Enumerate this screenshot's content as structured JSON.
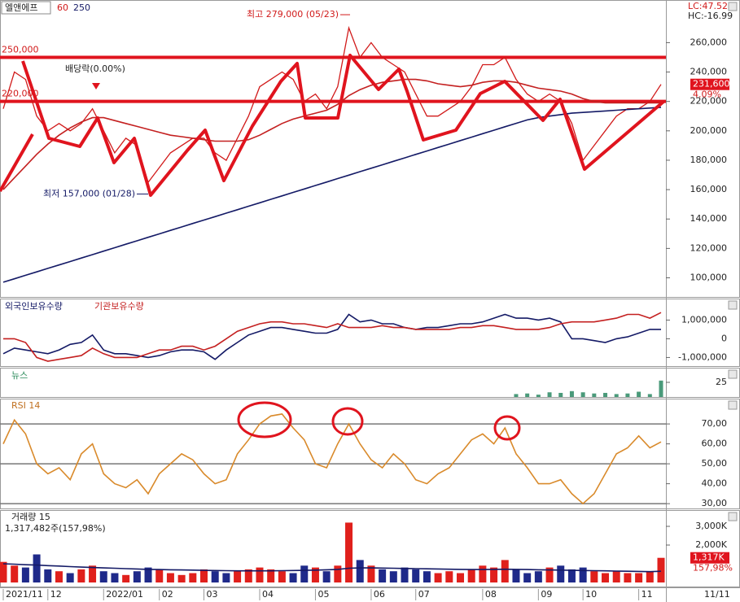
{
  "chart_data": [
    {
      "type": "line",
      "title": "엘앤에프",
      "ylim": [
        87000,
        289000
      ],
      "yticks": [
        {
          "value": 100000,
          "label": "100,000"
        },
        {
          "value": 120000,
          "label": "120,000"
        },
        {
          "value": 140000,
          "label": "140,000"
        },
        {
          "value": 160000,
          "label": "160,000"
        },
        {
          "value": 180000,
          "label": "180,000"
        },
        {
          "value": 200000,
          "label": "200,000"
        },
        {
          "value": 220000,
          "label": "220,000"
        },
        {
          "value": 240000,
          "label": "240,000"
        },
        {
          "value": 260000,
          "label": "260,000"
        }
      ],
      "levels": [
        {
          "value": 250000,
          "label": "250,000"
        },
        {
          "value": 220000,
          "label": "220,000"
        }
      ],
      "high": {
        "value": 279000,
        "label": "최고 279,000 (05/23)"
      },
      "low": {
        "value": 157000,
        "label": "최저 157,000 (01/28)"
      },
      "event_label": "배당락(0.00%)",
      "last": {
        "value": 231600,
        "label": "231,600"
      },
      "change_label": "4.09%",
      "lc_label": "LC:47.52",
      "hc_label": "HC:-16.99",
      "series": [
        {
          "color": "#d11a1a",
          "values": [
            215000,
            240000,
            235000,
            210000,
            200000,
            205000,
            200000,
            205000,
            215000,
            200000,
            185000,
            195000,
            190000,
            165000,
            175000,
            185000,
            190000,
            195000,
            195000,
            185000,
            180000,
            195000,
            210000,
            230000,
            235000,
            240000,
            235000,
            220000,
            225000,
            215000,
            230000,
            270000,
            250000,
            260000,
            250000,
            245000,
            240000,
            225000,
            210000,
            210000,
            215000,
            220000,
            230000,
            245000,
            245000,
            250000,
            235000,
            225000,
            220000,
            225000,
            220000,
            205000,
            180000,
            190000,
            200000,
            210000,
            215000,
            215000,
            220000,
            231600
          ]
        },
        {
          "name": "60",
          "color": "#c42020",
          "values": [
            160000,
            168000,
            176000,
            184000,
            191000,
            197000,
            202000,
            206000,
            209000,
            209000,
            207000,
            205000,
            203000,
            201000,
            199000,
            197000,
            196000,
            195000,
            194000,
            193000,
            193000,
            193000,
            194000,
            197000,
            201000,
            205000,
            208000,
            210000,
            212000,
            214000,
            218000,
            224000,
            228000,
            231000,
            233000,
            234000,
            235000,
            235000,
            234000,
            232000,
            231000,
            230000,
            231000,
            233000,
            234000,
            234000,
            233000,
            231000,
            229000,
            228000,
            227000,
            225000,
            222000,
            220000,
            219000,
            219000,
            219000,
            219000,
            219000,
            219000
          ]
        },
        {
          "name": "250",
          "color": "#141a66",
          "values": [
            97000,
            99350,
            101700,
            104050,
            106400,
            108750,
            111100,
            113450,
            115800,
            118150,
            120500,
            122850,
            125200,
            127550,
            129900,
            132250,
            134600,
            136950,
            139300,
            141650,
            144000,
            146350,
            148700,
            151050,
            153400,
            155750,
            158100,
            160450,
            162800,
            165150,
            167500,
            169850,
            172200,
            174550,
            176900,
            179250,
            181600,
            183950,
            186300,
            188650,
            191000,
            193350,
            195700,
            198050,
            200400,
            202750,
            205100,
            207450,
            209000,
            210000,
            211000,
            212000,
            212500,
            213000,
            213500,
            214000,
            214500,
            215000,
            215500,
            216000
          ]
        }
      ]
    },
    {
      "type": "line",
      "ylim": [
        -1460000,
        2150000
      ],
      "yticks": [
        {
          "value": 1000000,
          "label": "1,000,000"
        },
        0,
        {
          "value": -1000000,
          "label": "-1,000,000"
        }
      ],
      "series": [
        {
          "name": "외국인보유수량",
          "color": "#141a66",
          "values": [
            -800000,
            -500000,
            -600000,
            -700000,
            -800000,
            -600000,
            -300000,
            -200000,
            200000,
            -600000,
            -800000,
            -800000,
            -900000,
            -1000000,
            -900000,
            -700000,
            -600000,
            -600000,
            -700000,
            -1100000,
            -600000,
            -200000,
            200000,
            400000,
            600000,
            600000,
            500000,
            400000,
            300000,
            300000,
            500000,
            1300000,
            900000,
            1000000,
            800000,
            800000,
            600000,
            500000,
            600000,
            600000,
            700000,
            800000,
            800000,
            900000,
            1100000,
            1300000,
            1100000,
            1100000,
            1000000,
            1100000,
            900000,
            0,
            0,
            -100000,
            -200000,
            0,
            100000,
            300000,
            500000,
            500000
          ]
        },
        {
          "name": "기관보유수량",
          "color": "#c42020",
          "values": [
            0,
            0,
            -200000,
            -1000000,
            -1200000,
            -1100000,
            -1000000,
            -900000,
            -500000,
            -800000,
            -1000000,
            -1000000,
            -1000000,
            -800000,
            -600000,
            -600000,
            -400000,
            -400000,
            -600000,
            -400000,
            0,
            400000,
            600000,
            800000,
            900000,
            900000,
            800000,
            800000,
            700000,
            600000,
            800000,
            600000,
            600000,
            600000,
            700000,
            600000,
            600000,
            500000,
            500000,
            500000,
            500000,
            600000,
            600000,
            700000,
            700000,
            600000,
            500000,
            500000,
            500000,
            600000,
            800000,
            900000,
            900000,
            900000,
            1000000,
            1100000,
            1300000,
            1300000,
            1100000,
            1400000
          ]
        }
      ]
    },
    {
      "type": "bar",
      "title": "뉴스",
      "ylim": [
        0,
        50
      ],
      "yticks": [
        25
      ],
      "series": [
        {
          "color": "#4a9a7a",
          "values": [
            0,
            0,
            0,
            0,
            0,
            0,
            0,
            0,
            0,
            0,
            0,
            0,
            0,
            0,
            0,
            0,
            0,
            0,
            0,
            0,
            0,
            0,
            0,
            0,
            0,
            0,
            0,
            0,
            0,
            0,
            0,
            0,
            0,
            0,
            0,
            0,
            0,
            0,
            0,
            0,
            0,
            0,
            0,
            0,
            0,
            0,
            5,
            6,
            4,
            8,
            7,
            10,
            8,
            6,
            7,
            5,
            6,
            9,
            5,
            28
          ]
        }
      ]
    },
    {
      "type": "line",
      "title": "RSI 14",
      "ylim": [
        27.6,
        82.7
      ],
      "yticks": [
        {
          "value": 70,
          "label": "70,00"
        },
        {
          "value": 60,
          "label": "60,00"
        },
        {
          "value": 50,
          "label": "50,00"
        },
        {
          "value": 40,
          "label": "40,00"
        },
        {
          "value": 30,
          "label": "30,00"
        }
      ],
      "levels": [
        70,
        50,
        30
      ],
      "series": [
        {
          "color": "#d98a2b",
          "values": [
            60,
            72,
            65,
            50,
            45,
            48,
            42,
            55,
            60,
            45,
            40,
            38,
            42,
            35,
            45,
            50,
            55,
            52,
            45,
            40,
            42,
            55,
            62,
            70,
            74,
            75,
            68,
            62,
            50,
            48,
            60,
            70,
            60,
            52,
            48,
            55,
            50,
            42,
            40,
            45,
            48,
            55,
            62,
            65,
            60,
            68,
            55,
            48,
            40,
            40,
            42,
            35,
            30,
            35,
            45,
            55,
            58,
            64,
            58,
            61
          ]
        }
      ]
    },
    {
      "type": "bar",
      "title": "거래량 15",
      "subtitle": "1,317,482주(157,98%)",
      "ylim": [
        0,
        3870000
      ],
      "yticks": [
        {
          "value": 3000000,
          "label": "3,000K"
        },
        {
          "value": 2000000,
          "label": "2,000K"
        }
      ],
      "last": {
        "value": 1317482,
        "label": "1,317K"
      },
      "change_label": "157,98%",
      "up_color": "#e0201c",
      "down_color": "#1f2a8a",
      "categories": [
        "2021/11",
        null,
        null,
        null,
        "12",
        null,
        null,
        null,
        null,
        "2022/01",
        null,
        null,
        null,
        null,
        "02",
        null,
        null,
        null,
        "03",
        null,
        null,
        null,
        null,
        "04",
        null,
        null,
        null,
        null,
        "05",
        null,
        null,
        null,
        null,
        "06",
        null,
        null,
        null,
        "07",
        null,
        null,
        null,
        null,
        null,
        "08",
        null,
        null,
        null,
        null,
        "09",
        null,
        null,
        null,
        "10",
        null,
        null,
        null,
        null,
        "11",
        null,
        null
      ],
      "x_cursor_label": "11/11",
      "series": [
        {
          "values": [
            1100000,
            900000,
            800000,
            1500000,
            700000,
            600000,
            500000,
            700000,
            900000,
            600000,
            500000,
            400000,
            600000,
            800000,
            700000,
            500000,
            400000,
            500000,
            700000,
            600000,
            500000,
            600000,
            700000,
            800000,
            700000,
            600000,
            500000,
            900000,
            800000,
            600000,
            900000,
            3200000,
            1200000,
            900000,
            700000,
            600000,
            800000,
            700000,
            600000,
            500000,
            600000,
            500000,
            700000,
            900000,
            800000,
            1200000,
            700000,
            500000,
            600000,
            800000,
            900000,
            700000,
            800000,
            600000,
            500000,
            600000,
            500000,
            500000,
            600000,
            1317482
          ]
        },
        {
          "type": "line",
          "color": "#141a66",
          "values": [
            1000000,
            980000,
            950000,
            930000,
            900000,
            880000,
            850000,
            820000,
            800000,
            780000,
            760000,
            740000,
            720000,
            700000,
            690000,
            680000,
            670000,
            660000,
            650000,
            640000,
            630000,
            620000,
            620000,
            620000,
            620000,
            630000,
            640000,
            650000,
            660000,
            680000,
            700000,
            760000,
            780000,
            780000,
            770000,
            760000,
            750000,
            740000,
            730000,
            720000,
            710000,
            700000,
            690000,
            690000,
            700000,
            710000,
            700000,
            690000,
            680000,
            670000,
            660000,
            650000,
            640000,
            630000,
            620000,
            610000,
            600000,
            590000,
            580000,
            600000
          ]
        }
      ]
    }
  ]
}
